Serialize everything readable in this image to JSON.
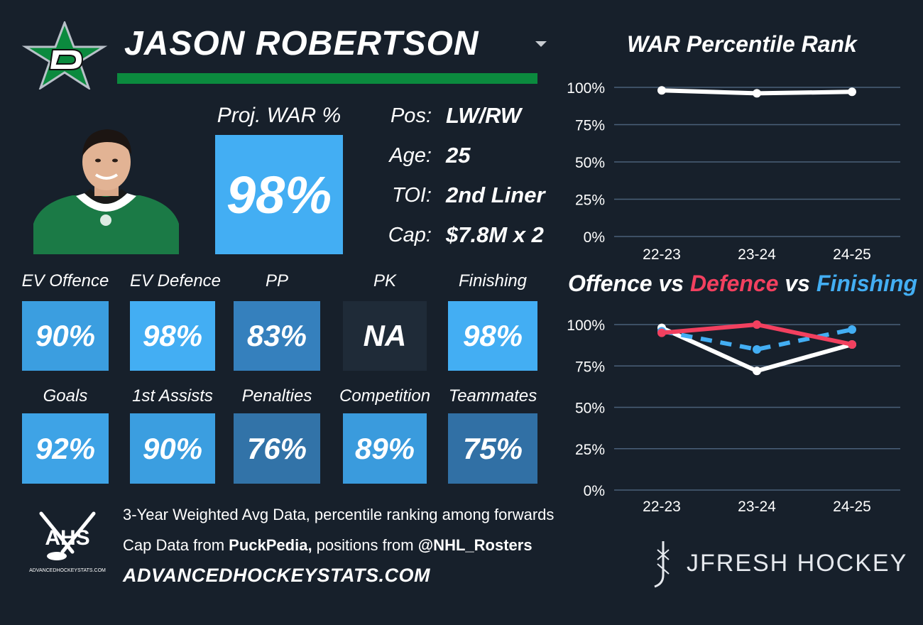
{
  "header": {
    "player_name": "JASON ROBERTSON",
    "logo_icon": "dallas-stars-star-icon",
    "accent_green": "#0b8a3e"
  },
  "projection": {
    "label": "Proj. WAR %",
    "value": "98%"
  },
  "info": [
    {
      "key": "Pos:",
      "value": "LW/RW"
    },
    {
      "key": "Age:",
      "value": "25"
    },
    {
      "key": "TOI:",
      "value": "2nd Liner"
    },
    {
      "key": "Cap:",
      "value": "$7.8M x 2"
    }
  ],
  "stats_row1": [
    {
      "label": "EV Offence",
      "value": "90%",
      "color": "#3b9ee0"
    },
    {
      "label": "EV Defence",
      "value": "98%",
      "color": "#43aef3"
    },
    {
      "label": "PP",
      "value": "83%",
      "color": "#3580bd"
    },
    {
      "label": "PK",
      "value": "NA",
      "color": "#1f2b38"
    },
    {
      "label": "Finishing",
      "value": "98%",
      "color": "#43aef3"
    }
  ],
  "stats_row2": [
    {
      "label": "Goals",
      "value": "92%",
      "color": "#3ea3e6"
    },
    {
      "label": "1st Assists",
      "value": "90%",
      "color": "#3b9ee0"
    },
    {
      "label": "Penalties",
      "value": "76%",
      "color": "#3273a8"
    },
    {
      "label": "Competition",
      "value": "89%",
      "color": "#3a9bdd"
    },
    {
      "label": "Teammates",
      "value": "75%",
      "color": "#3170a5"
    }
  ],
  "footer": {
    "line1": "3-Year Weighted Avg Data, percentile ranking among forwards",
    "line2_prefix": "Cap Data from ",
    "line2_bold1": "PuckPedia,",
    "line2_mid": " positions from ",
    "line2_bold2": "@NHL_Rosters",
    "site": "ADVANCEDHOCKEYSTATS.COM",
    "ahs_text": "AHS",
    "ahs_caption": "ADVANCEDHOCKEYSTATS.COM",
    "brand": "JFRESH HOCKEY"
  },
  "chart_data": [
    {
      "type": "line",
      "title": "WAR Percentile Rank",
      "categories": [
        "22-23",
        "23-24",
        "24-25"
      ],
      "y_ticks": [
        "100%",
        "75%",
        "50%",
        "25%",
        "0%"
      ],
      "ylim": [
        0,
        100
      ],
      "grid": true,
      "series": [
        {
          "values": [
            98,
            96,
            97
          ],
          "color": "#ffffff",
          "dash": false
        }
      ]
    },
    {
      "type": "line",
      "title_parts": [
        {
          "text": "Offence",
          "color": "#ffffff"
        },
        {
          "text": " vs ",
          "color": "#ffffff"
        },
        {
          "text": "Defence",
          "color": "#f2405f"
        },
        {
          "text": " vs ",
          "color": "#ffffff"
        },
        {
          "text": "Finishing",
          "color": "#43aef3"
        }
      ],
      "categories": [
        "22-23",
        "23-24",
        "24-25"
      ],
      "y_ticks": [
        "100%",
        "75%",
        "50%",
        "25%",
        "0%"
      ],
      "ylim": [
        0,
        100
      ],
      "grid": true,
      "series": [
        {
          "name": "Offence",
          "values": [
            98,
            72,
            88
          ],
          "color": "#ffffff",
          "dash": false
        },
        {
          "name": "Finishing",
          "values": [
            96,
            85,
            97
          ],
          "color": "#43aef3",
          "dash": true
        },
        {
          "name": "Defence",
          "values": [
            95,
            100,
            88
          ],
          "color": "#f2405f",
          "dash": false
        }
      ]
    }
  ]
}
